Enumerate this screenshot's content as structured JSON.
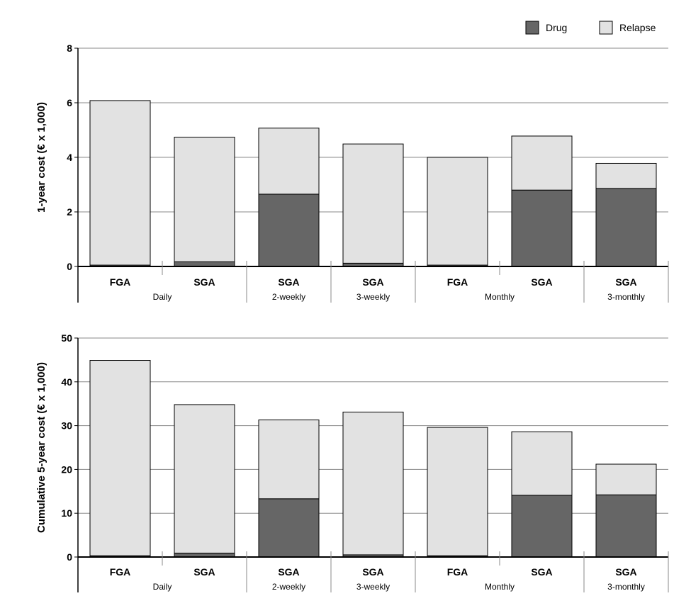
{
  "legend": {
    "items": [
      {
        "label": "Drug",
        "color": "#666666"
      },
      {
        "label": "Relapse",
        "color": "#e2e2e2"
      }
    ],
    "placement": "top-right"
  },
  "chart_data": [
    {
      "type": "bar",
      "stacked": true,
      "ylabel": "1-year cost (€ x 1,000)",
      "ylim": [
        0,
        8
      ],
      "yticks": [
        0,
        2,
        4,
        6,
        8
      ],
      "grid": true,
      "categories": [
        "FGA",
        "SGA",
        "SGA",
        "SGA",
        "FGA",
        "SGA",
        "SGA"
      ],
      "groups": [
        {
          "label": "Daily",
          "span": 2
        },
        {
          "label": "2-weekly",
          "span": 1
        },
        {
          "label": "3-weekly",
          "span": 1
        },
        {
          "label": "Monthly",
          "span": 2
        },
        {
          "label": "3-monthly",
          "span": 1
        }
      ],
      "series": [
        {
          "name": "Drug",
          "values": [
            0.05,
            0.17,
            2.65,
            0.12,
            0.05,
            2.8,
            2.86
          ]
        },
        {
          "name": "Relapse",
          "values": [
            6.03,
            4.57,
            2.42,
            4.37,
            3.95,
            1.98,
            0.92
          ]
        }
      ]
    },
    {
      "type": "bar",
      "stacked": true,
      "ylabel": "Cumulative 5-year cost (€ x 1,000)",
      "ylim": [
        0,
        50
      ],
      "yticks": [
        0,
        10,
        20,
        30,
        40,
        50
      ],
      "grid": true,
      "categories": [
        "FGA",
        "SGA",
        "SGA",
        "SGA",
        "FGA",
        "SGA",
        "SGA"
      ],
      "groups": [
        {
          "label": "Daily",
          "span": 2
        },
        {
          "label": "2-weekly",
          "span": 1
        },
        {
          "label": "3-weekly",
          "span": 1
        },
        {
          "label": "Monthly",
          "span": 2
        },
        {
          "label": "3-monthly",
          "span": 1
        }
      ],
      "series": [
        {
          "name": "Drug",
          "values": [
            0.3,
            0.9,
            13.3,
            0.5,
            0.3,
            14.1,
            14.2
          ]
        },
        {
          "name": "Relapse",
          "values": [
            44.6,
            33.9,
            18.0,
            32.6,
            29.3,
            14.5,
            7.0
          ]
        }
      ]
    }
  ]
}
